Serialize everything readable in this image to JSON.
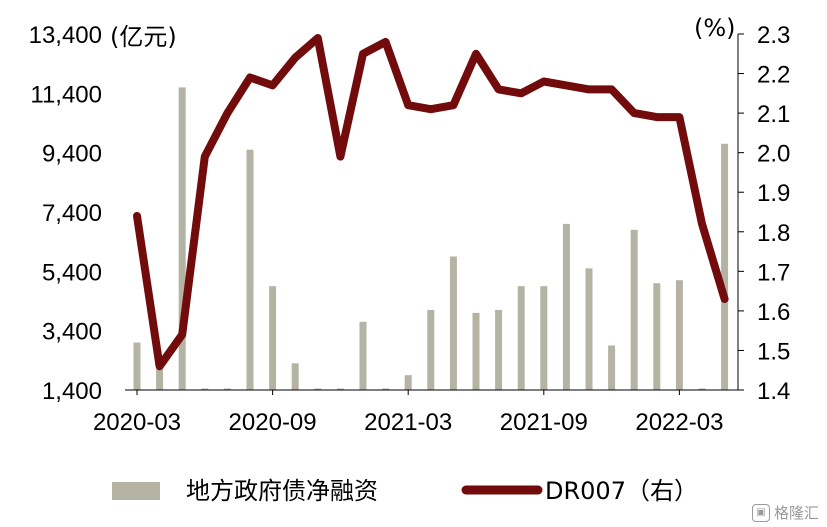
{
  "chart_data": {
    "type": "bar+line",
    "title": "",
    "left_axis": {
      "unit": "(亿元)",
      "ticks": [
        "13,400",
        "11,400",
        "9,400",
        "7,400",
        "5,400",
        "3,400",
        "1,400"
      ],
      "ylim": [
        1400,
        13400
      ]
    },
    "right_axis": {
      "unit": "(%)",
      "ticks": [
        "2.3",
        "2.2",
        "2.1",
        "2.0",
        "1.9",
        "1.8",
        "1.7",
        "1.6",
        "1.5",
        "1.4"
      ],
      "ylim": [
        1.4,
        2.3
      ]
    },
    "x_tick_labels": [
      "2020-03",
      "2020-09",
      "2021-03",
      "2021-09",
      "2022-03"
    ],
    "categories": [
      "2020-03",
      "2020-04",
      "2020-05",
      "2020-06",
      "2020-07",
      "2020-08",
      "2020-09",
      "2020-10",
      "2020-11",
      "2020-12",
      "2021-01",
      "2021-02",
      "2021-03",
      "2021-04",
      "2021-05",
      "2021-06",
      "2021-07",
      "2021-08",
      "2021-09",
      "2021-10",
      "2021-11",
      "2021-12",
      "2022-01",
      "2022-02",
      "2022-03",
      "2022-04",
      "2022-05"
    ],
    "series": [
      {
        "name": "地方政府债净融资",
        "type": "bar",
        "axis": "left",
        "color": "#b5b3a3",
        "values": [
          3000,
          2100,
          11600,
          1300,
          1300,
          9500,
          4900,
          2300,
          1300,
          1300,
          3700,
          1300,
          1900,
          4100,
          5900,
          4000,
          4100,
          4900,
          4900,
          7000,
          5500,
          2900,
          6800,
          5000,
          5100,
          1450,
          9700
        ]
      },
      {
        "name": "DR007（右）",
        "type": "line",
        "axis": "right",
        "color": "#720b0b",
        "values": [
          1.84,
          1.46,
          1.54,
          1.99,
          2.1,
          2.19,
          2.17,
          2.24,
          2.29,
          1.99,
          2.25,
          2.28,
          2.12,
          2.11,
          2.12,
          2.25,
          2.16,
          2.15,
          2.18,
          2.17,
          2.16,
          2.16,
          2.1,
          2.09,
          2.09,
          1.82,
          1.63
        ]
      }
    ],
    "legend_position": "bottom"
  },
  "watermark": {
    "text": "格隆汇",
    "icon": "logo-icon"
  }
}
